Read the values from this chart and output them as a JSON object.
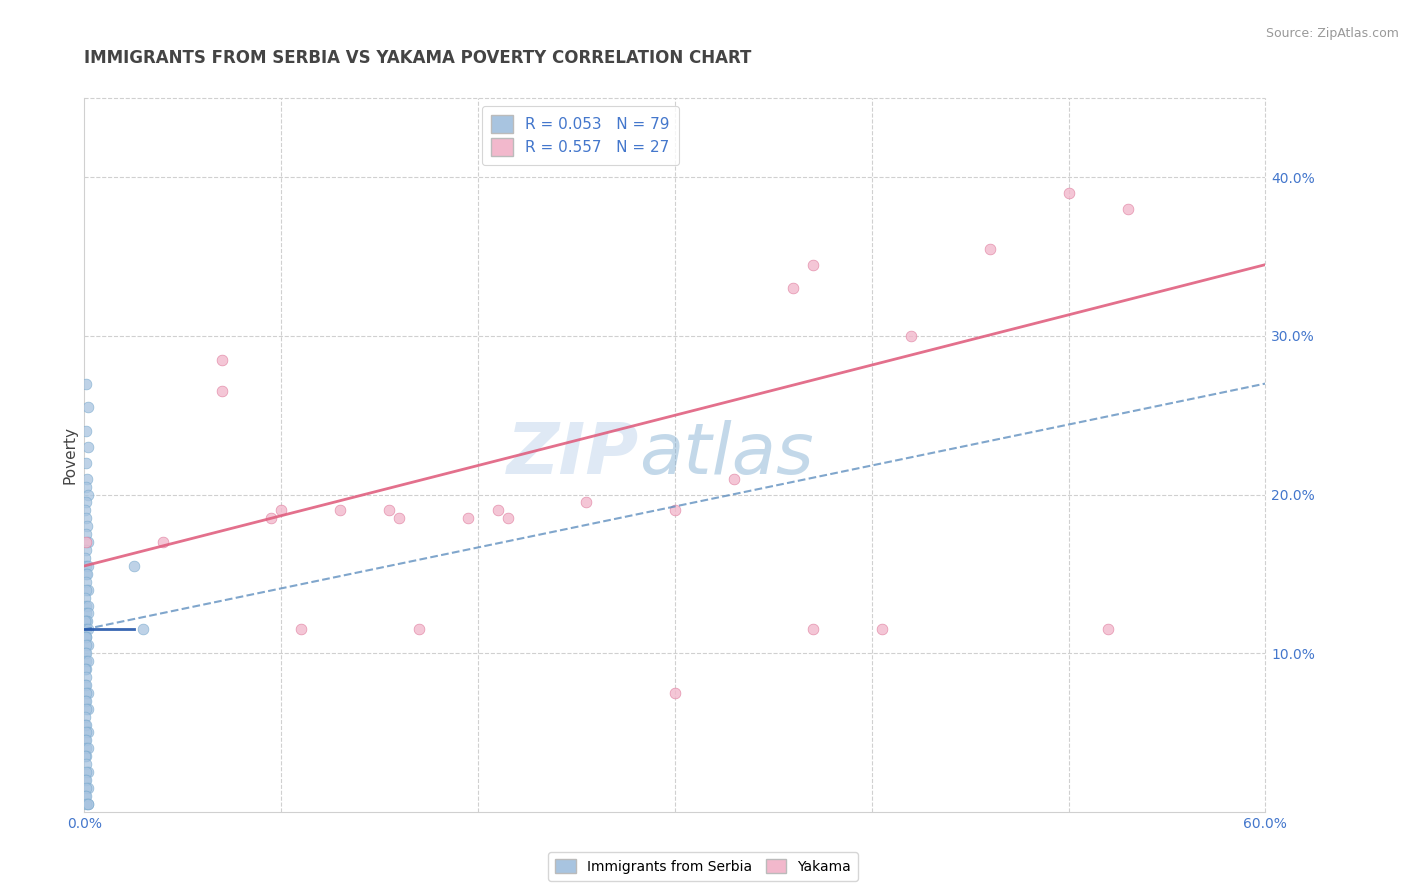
{
  "title": "IMMIGRANTS FROM SERBIA VS YAKAMA POVERTY CORRELATION CHART",
  "source": "Source: ZipAtlas.com",
  "ylabel": "Poverty",
  "right_yticks": [
    "10.0%",
    "20.0%",
    "30.0%",
    "40.0%"
  ],
  "right_ytick_vals": [
    0.1,
    0.2,
    0.3,
    0.4
  ],
  "xlim": [
    0.0,
    0.6
  ],
  "ylim": [
    0.0,
    0.45
  ],
  "watermark_zip": "ZIP",
  "watermark_atlas": "atlas",
  "serbia_color": "#a8c4e0",
  "serbia_edge_color": "#7aaace",
  "yakama_color": "#f2b8cc",
  "yakama_edge_color": "#e080a0",
  "serbia_line_color": "#5588bb",
  "serbia_line_color2": "#2255aa",
  "yakama_line_color": "#e06080",
  "title_color": "#444444",
  "axis_label_color": "#4477cc",
  "grid_color": "#d0d0d0",
  "serbia_R": 0.053,
  "serbia_N": 79,
  "yakama_R": 0.557,
  "yakama_N": 27,
  "serbia_scatter_x": [
    0.001,
    0.002,
    0.001,
    0.002,
    0.001,
    0.0015,
    0.001,
    0.002,
    0.001,
    0.0005,
    0.001,
    0.0015,
    0.001,
    0.002,
    0.001,
    0.0005,
    0.001,
    0.002,
    0.001,
    0.0015,
    0.001,
    0.002,
    0.001,
    0.0005,
    0.001,
    0.002,
    0.001,
    0.002,
    0.001,
    0.0015,
    0.0005,
    0.001,
    0.002,
    0.001,
    0.0005,
    0.001,
    0.002,
    0.001,
    0.0005,
    0.001,
    0.001,
    0.002,
    0.001,
    0.0005,
    0.001,
    0.0005,
    0.001,
    0.002,
    0.001,
    0.0005,
    0.001,
    0.002,
    0.001,
    0.0005,
    0.0005,
    0.001,
    0.002,
    0.001,
    0.0005,
    0.001,
    0.001,
    0.002,
    0.001,
    0.0005,
    0.001,
    0.002,
    0.001,
    0.0005,
    0.001,
    0.002,
    0.001,
    0.0005,
    0.001,
    0.002,
    0.001,
    0.002,
    0.025,
    0.03
  ],
  "serbia_scatter_y": [
    0.27,
    0.255,
    0.24,
    0.23,
    0.22,
    0.21,
    0.205,
    0.2,
    0.195,
    0.19,
    0.185,
    0.18,
    0.175,
    0.17,
    0.165,
    0.16,
    0.155,
    0.155,
    0.15,
    0.15,
    0.145,
    0.14,
    0.14,
    0.135,
    0.13,
    0.13,
    0.125,
    0.125,
    0.12,
    0.12,
    0.12,
    0.115,
    0.115,
    0.11,
    0.11,
    0.11,
    0.105,
    0.105,
    0.1,
    0.1,
    0.095,
    0.095,
    0.09,
    0.09,
    0.085,
    0.08,
    0.08,
    0.075,
    0.075,
    0.07,
    0.07,
    0.065,
    0.065,
    0.06,
    0.055,
    0.055,
    0.05,
    0.05,
    0.045,
    0.045,
    0.04,
    0.04,
    0.035,
    0.035,
    0.03,
    0.025,
    0.025,
    0.02,
    0.02,
    0.015,
    0.015,
    0.01,
    0.01,
    0.005,
    0.005,
    0.005,
    0.155,
    0.115
  ],
  "yakama_scatter_x": [
    0.001,
    0.04,
    0.07,
    0.07,
    0.095,
    0.1,
    0.13,
    0.155,
    0.16,
    0.195,
    0.21,
    0.215,
    0.255,
    0.3,
    0.33,
    0.36,
    0.37,
    0.42,
    0.46,
    0.5,
    0.52,
    0.53,
    0.11,
    0.17,
    0.37,
    0.405,
    0.3
  ],
  "yakama_scatter_y": [
    0.17,
    0.17,
    0.285,
    0.265,
    0.185,
    0.19,
    0.19,
    0.19,
    0.185,
    0.185,
    0.19,
    0.185,
    0.195,
    0.19,
    0.21,
    0.33,
    0.345,
    0.3,
    0.355,
    0.39,
    0.115,
    0.38,
    0.115,
    0.115,
    0.115,
    0.115,
    0.075
  ],
  "serbia_trendline_x": [
    0.0,
    0.6
  ],
  "serbia_trendline_y": [
    0.115,
    0.27
  ],
  "yakama_trendline_x": [
    0.0,
    0.6
  ],
  "yakama_trendline_y": [
    0.155,
    0.345
  ],
  "serbia_short_line_x": [
    0.0,
    0.025
  ],
  "serbia_short_line_y": [
    0.115,
    0.115
  ]
}
